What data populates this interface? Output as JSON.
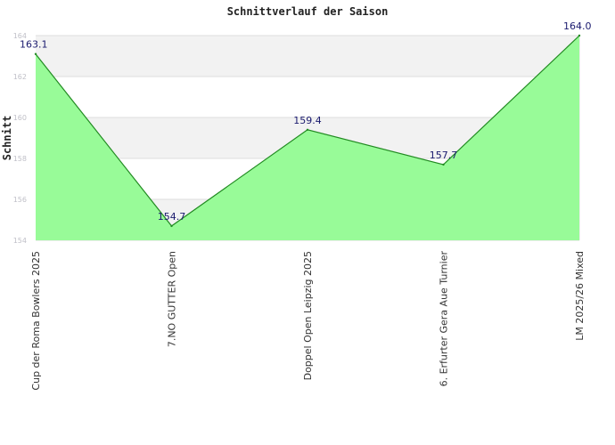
{
  "chart_data": {
    "type": "area",
    "title": "Schnittverlauf der Saison",
    "xlabel": "",
    "ylabel": "Schnitt",
    "categories": [
      "Cup der Roma Bowlers 2025",
      "7.NO GUTTER Open",
      "Doppel Open Leipzig 2025",
      "6. Erfurter Gera Aue Turnier",
      "LM 2025/26 Mixed"
    ],
    "values": [
      163.1,
      154.7,
      159.4,
      157.7,
      164.0
    ],
    "data_labels": [
      "163.1",
      "154.7",
      "159.4",
      "157.7",
      "164.0"
    ],
    "ylim": [
      154,
      164
    ],
    "yticks": [
      154,
      156,
      158,
      160,
      162,
      164
    ],
    "grid": true,
    "legend": "none",
    "colors": {
      "area_fill": "#98fb98",
      "line": "#228b22",
      "band": "#f2f2f2",
      "grid": "#dddddd",
      "data_label": "#1a1a6e"
    }
  }
}
